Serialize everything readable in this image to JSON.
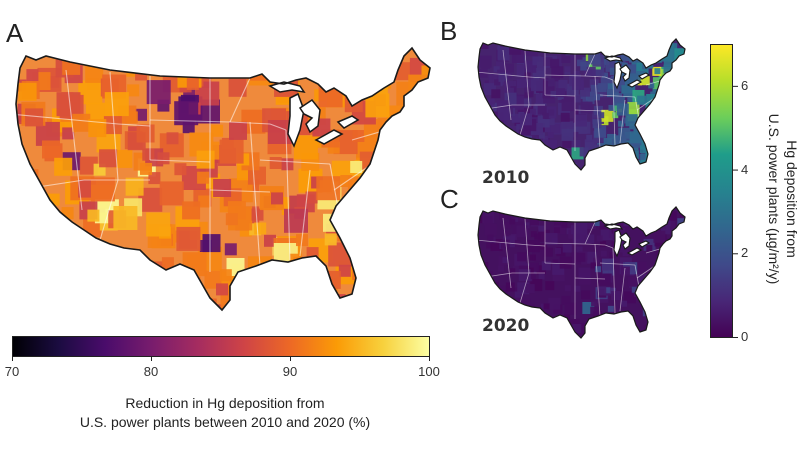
{
  "panels": {
    "a": {
      "letter": "A"
    },
    "b": {
      "letter": "B",
      "year": "2010"
    },
    "c": {
      "letter": "C",
      "year": "2020"
    }
  },
  "colorbar_reduction": {
    "ticks": [
      "70",
      "80",
      "90",
      "100"
    ],
    "min": 70,
    "max": 100,
    "caption_line1": "Reduction in Hg deposition from",
    "caption_line2": "U.S. power plants between 2010 and 2020 (%)",
    "colormap": "inferno",
    "stops": [
      "#000004",
      "#1b0c41",
      "#4a0c6b",
      "#781c6d",
      "#a52c60",
      "#cf4446",
      "#ed6925",
      "#fb9b06",
      "#f7d13d",
      "#fcffa4"
    ]
  },
  "colorbar_deposition": {
    "ticks": [
      "0",
      "2",
      "4",
      "6"
    ],
    "min": 0,
    "max": 7,
    "title_line1": "Hg deposition from",
    "title_line2": "U.S. power plants (µg/m²/y)",
    "colormap": "viridis",
    "stops": [
      "#440154",
      "#482777",
      "#3f4a8a",
      "#31678e",
      "#26838f",
      "#1f9d8a",
      "#6cce5a",
      "#b6de2b",
      "#fee825"
    ]
  },
  "map_colors": {
    "reduction_base": "#ef8a3c",
    "deposition_2010_base": "#46236e",
    "deposition_2020_base": "#44115f",
    "border": "#1a1a1a",
    "state_lines": "#ffffff"
  }
}
